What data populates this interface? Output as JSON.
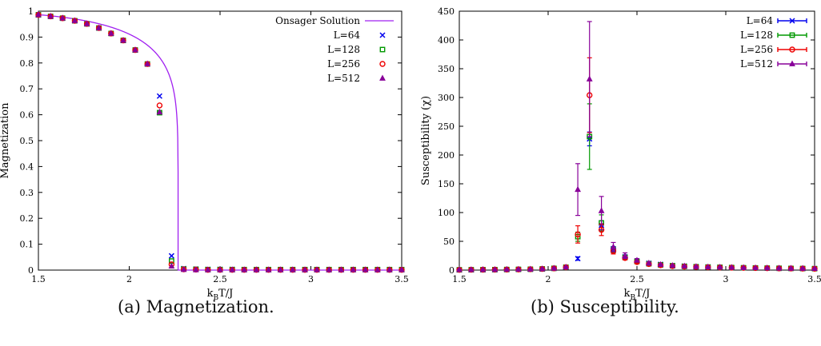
{
  "captions": {
    "a": "(a) Magnetization.",
    "b": "(b) Susceptibility."
  },
  "colors": {
    "L64": "#0000ee",
    "L128": "#009900",
    "L256": "#ee0000",
    "L512": "#880099",
    "onsager": "#a020f0"
  },
  "chart_data": [
    {
      "type": "scatter",
      "xlabel_base": "k",
      "xlabel_sub": "B",
      "xlabel_rest": "T/J",
      "ylabel": "Magnetization",
      "xlim": [
        1.5,
        3.5
      ],
      "ylim": [
        0,
        1
      ],
      "xticks": [
        1.5,
        2,
        2.5,
        3,
        3.5
      ],
      "xtick_labels": [
        "1.5",
        "2",
        "2.5",
        "3",
        "3.5"
      ],
      "yticks": [
        0,
        0.1,
        0.2,
        0.3,
        0.4,
        0.5,
        0.6,
        0.7,
        0.8,
        0.9,
        1
      ],
      "ytick_labels": [
        "0",
        "0.1",
        "0.2",
        "0.3",
        "0.4",
        "0.5",
        "0.6",
        "0.7",
        "0.8",
        "0.9",
        "1"
      ],
      "legend": "top-right",
      "curve": {
        "name": "Onsager Solution",
        "tc": 2.269
      },
      "x": [
        1.5,
        1.567,
        1.633,
        1.7,
        1.767,
        1.833,
        1.9,
        1.967,
        2.033,
        2.1,
        2.167,
        2.233,
        2.3,
        2.367,
        2.433,
        2.5,
        2.567,
        2.633,
        2.7,
        2.767,
        2.833,
        2.9,
        2.967,
        3.033,
        3.1,
        3.167,
        3.233,
        3.3,
        3.367,
        3.433,
        3.5
      ],
      "series": [
        {
          "name": "L=64",
          "marker": "x",
          "values": [
            0.986,
            0.98,
            0.973,
            0.963,
            0.951,
            0.935,
            0.914,
            0.887,
            0.85,
            0.796,
            0.672,
            0.055,
            0.006,
            0.004,
            0.003,
            0.003,
            0.003,
            0.002,
            0.002,
            0.002,
            0.002,
            0.002,
            0.002,
            0.002,
            0.002,
            0.002,
            0.002,
            0.002,
            0.002,
            0.002,
            0.002
          ]
        },
        {
          "name": "L=128",
          "marker": "square",
          "values": [
            0.986,
            0.98,
            0.973,
            0.963,
            0.951,
            0.935,
            0.914,
            0.887,
            0.85,
            0.796,
            0.608,
            0.035,
            0.004,
            0.003,
            0.002,
            0.002,
            0.002,
            0.002,
            0.002,
            0.002,
            0.002,
            0.002,
            0.002,
            0.002,
            0.002,
            0.002,
            0.002,
            0.002,
            0.002,
            0.002,
            0.002
          ]
        },
        {
          "name": "L=256",
          "marker": "circle",
          "values": [
            0.986,
            0.98,
            0.973,
            0.963,
            0.951,
            0.935,
            0.914,
            0.887,
            0.85,
            0.796,
            0.636,
            0.022,
            0.003,
            0.002,
            0.001,
            0.001,
            0.001,
            0.001,
            0.001,
            0.001,
            0.001,
            0.001,
            0.001,
            0.001,
            0.001,
            0.001,
            0.001,
            0.001,
            0.001,
            0.001,
            0.001
          ]
        },
        {
          "name": "L=512",
          "marker": "triangle",
          "values": [
            0.986,
            0.98,
            0.973,
            0.963,
            0.951,
            0.935,
            0.914,
            0.887,
            0.85,
            0.796,
            0.61,
            0.015,
            0.002,
            0.001,
            0.001,
            0.001,
            0.001,
            0.001,
            0.001,
            0.001,
            0.001,
            0.001,
            0.001,
            0.001,
            0.001,
            0.001,
            0.001,
            0.001,
            0.001,
            0.001,
            0.001
          ]
        }
      ]
    },
    {
      "type": "scatter",
      "xlabel_base": "k",
      "xlabel_sub": "B",
      "xlabel_rest": "T/J",
      "ylabel": "Susceptibility (χ)",
      "xlim": [
        1.5,
        3.5
      ],
      "ylim": [
        0,
        450
      ],
      "xticks": [
        1.5,
        2,
        2.5,
        3,
        3.5
      ],
      "xtick_labels": [
        "1.5",
        "2",
        "2.5",
        "3",
        "3.5"
      ],
      "yticks": [
        0,
        50,
        100,
        150,
        200,
        250,
        300,
        350,
        400,
        450
      ],
      "ytick_labels": [
        "0",
        "50",
        "100",
        "150",
        "200",
        "250",
        "300",
        "350",
        "400",
        "450"
      ],
      "legend": "top-right",
      "error_bars": true,
      "x": [
        1.5,
        1.567,
        1.633,
        1.7,
        1.767,
        1.833,
        1.9,
        1.967,
        2.033,
        2.1,
        2.167,
        2.233,
        2.3,
        2.367,
        2.433,
        2.5,
        2.567,
        2.633,
        2.7,
        2.767,
        2.833,
        2.9,
        2.967,
        3.033,
        3.1,
        3.167,
        3.233,
        3.3,
        3.367,
        3.433,
        3.5
      ],
      "series": [
        {
          "name": "L=64",
          "marker": "x",
          "values": [
            0.5,
            0.6,
            0.7,
            0.8,
            1,
            1.2,
            1.5,
            2,
            3,
            5,
            20,
            228,
            78,
            37,
            23,
            16,
            12,
            10,
            8,
            7,
            6,
            5.5,
            5,
            4.5,
            4,
            3.8,
            3.5,
            3.2,
            3,
            2.8,
            2.6
          ],
          "errors": [
            0.2,
            0.2,
            0.2,
            0.2,
            0.3,
            0.3,
            0.4,
            0.5,
            0.8,
            1,
            3,
            12,
            8,
            4,
            3,
            2,
            1.5,
            1.2,
            1,
            1,
            0.8,
            0.7,
            0.6,
            0.6,
            0.5,
            0.5,
            0.5,
            0.4,
            0.4,
            0.4,
            0.3
          ]
        },
        {
          "name": "L=128",
          "marker": "square",
          "values": [
            0.5,
            0.6,
            0.7,
            0.8,
            1,
            1.2,
            1.5,
            2,
            3,
            5,
            58,
            232,
            82,
            35,
            22,
            15,
            11,
            9,
            7.5,
            6.5,
            5.8,
            5.2,
            4.8,
            4.4,
            4,
            3.7,
            3.4,
            3.1,
            2.9,
            2.7,
            2.5
          ],
          "errors": [
            0.2,
            0.2,
            0.2,
            0.2,
            0.3,
            0.3,
            0.4,
            0.5,
            0.8,
            1,
            8,
            57,
            14,
            5,
            3,
            2,
            1.5,
            1.2,
            1,
            1,
            0.8,
            0.7,
            0.6,
            0.6,
            0.5,
            0.5,
            0.5,
            0.4,
            0.4,
            0.4,
            0.3
          ]
        },
        {
          "name": "L=256",
          "marker": "circle",
          "values": [
            0.5,
            0.6,
            0.7,
            0.8,
            1,
            1.2,
            1.5,
            2,
            3,
            5,
            62,
            304,
            70,
            33,
            21,
            14,
            10.5,
            8.5,
            7,
            6.2,
            5.5,
            5,
            4.6,
            4.2,
            3.9,
            3.6,
            3.3,
            3,
            2.8,
            2.6,
            2.4
          ],
          "errors": [
            0.2,
            0.2,
            0.2,
            0.2,
            0.3,
            0.3,
            0.4,
            0.5,
            0.8,
            1,
            15,
            65,
            10,
            5,
            3,
            2,
            1.5,
            1.2,
            1,
            1,
            0.8,
            0.7,
            0.6,
            0.6,
            0.5,
            0.5,
            0.5,
            0.4,
            0.4,
            0.4,
            0.3
          ]
        },
        {
          "name": "L=512",
          "marker": "triangle",
          "values": [
            0.5,
            0.6,
            0.7,
            0.8,
            1,
            1.2,
            1.5,
            2,
            3,
            5,
            140,
            332,
            103,
            40,
            25,
            17,
            12,
            9.5,
            7.8,
            6.8,
            6,
            5.3,
            4.9,
            4.5,
            4.1,
            3.8,
            3.5,
            3.2,
            3,
            2.8,
            2.6
          ],
          "errors": [
            0.2,
            0.2,
            0.2,
            0.2,
            0.3,
            0.3,
            0.4,
            0.5,
            0.8,
            1,
            45,
            100,
            25,
            8,
            5,
            3,
            2,
            1.5,
            1.2,
            1,
            0.8,
            0.7,
            0.6,
            0.6,
            0.5,
            0.5,
            0.5,
            0.4,
            0.4,
            0.4,
            0.3
          ]
        }
      ]
    }
  ]
}
